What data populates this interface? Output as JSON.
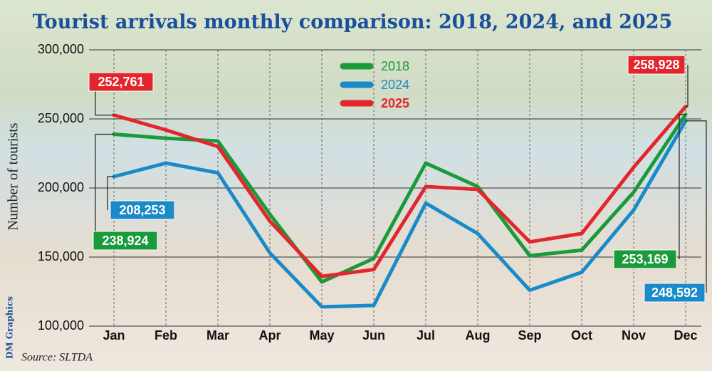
{
  "chart_data": {
    "type": "line",
    "title": "Tourist arrivals monthly comparison: 2018, 2024, and 2025",
    "y_label": "Number of tourists",
    "source": "Source: SLTDA",
    "branding": "DM Graphics",
    "categories": [
      "Jan",
      "Feb",
      "Mar",
      "Apr",
      "May",
      "Jun",
      "Jul",
      "Aug",
      "Sep",
      "Oct",
      "Nov",
      "Dec"
    ],
    "series": [
      {
        "name": "2018",
        "color": "#1a9a3a",
        "values": [
          238924,
          236000,
          234000,
          181000,
          132000,
          149000,
          218000,
          201000,
          151000,
          155000,
          197000,
          253169
        ],
        "value_labels": [
          "238,924",
          null,
          null,
          null,
          null,
          null,
          null,
          null,
          null,
          null,
          null,
          "253,169"
        ]
      },
      {
        "name": "2024",
        "color": "#1a8ac8",
        "values": [
          208253,
          218000,
          211000,
          153000,
          114000,
          115000,
          189000,
          167000,
          126000,
          139000,
          184000,
          248592
        ],
        "value_labels": [
          "208,253",
          null,
          null,
          null,
          null,
          null,
          null,
          null,
          null,
          null,
          null,
          "248,592"
        ]
      },
      {
        "name": "2025",
        "color": "#e3262c",
        "values": [
          252761,
          242000,
          230000,
          176000,
          136000,
          141000,
          201000,
          199000,
          161000,
          167000,
          215000,
          258928
        ],
        "value_labels": [
          "252,761",
          null,
          null,
          null,
          null,
          null,
          null,
          null,
          null,
          null,
          null,
          "258,928"
        ]
      }
    ],
    "ylim": [
      100000,
      300000
    ],
    "yticks": [
      {
        "value": 100000,
        "label": "100,000"
      },
      {
        "value": 150000,
        "label": "150,000"
      },
      {
        "value": 200000,
        "label": "200,000"
      },
      {
        "value": 250000,
        "label": "250,000"
      },
      {
        "value": 300000,
        "label": "300,000"
      }
    ],
    "grid": true,
    "legend": "top"
  }
}
